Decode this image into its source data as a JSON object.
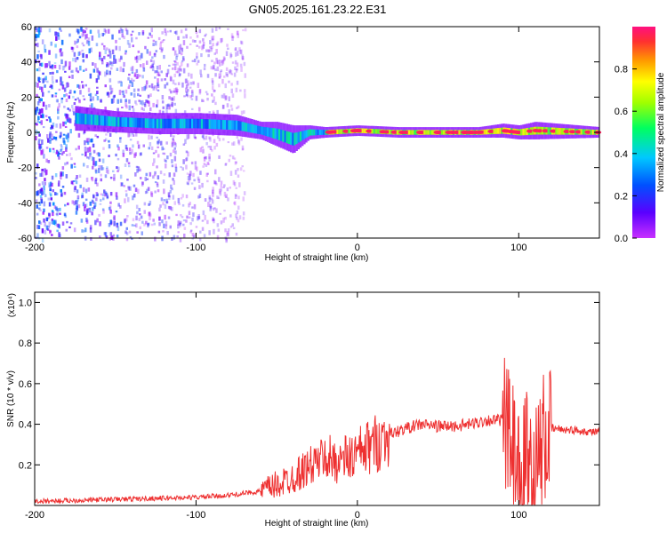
{
  "title": "GN05.2025.161.23.22.E31",
  "chart_data": [
    {
      "type": "heatmap",
      "xlabel": "Height of straight line (km)",
      "ylabel": "Frequency (Hz)",
      "xlim": [
        -200,
        150
      ],
      "ylim": [
        -60,
        60
      ],
      "xticks": [
        -200,
        -100,
        0,
        100
      ],
      "yticks": [
        60,
        40,
        20,
        0,
        -20,
        -40,
        -60
      ],
      "colorbar": {
        "label": "Normalized spectral amplitude",
        "range": [
          0,
          1
        ],
        "ticks": [
          "0.8",
          "0.6",
          "0.4",
          "0.2",
          "0.0"
        ],
        "colors": [
          "#c830ff",
          "#5a00ff",
          "#0050ff",
          "#00c8ff",
          "#00ff60",
          "#a0ff00",
          "#ffff00",
          "#ff9900",
          "#ff3030",
          "#ff1080"
        ]
      },
      "band": {
        "x": [
          -175,
          -150,
          -125,
          -100,
          -75,
          -60,
          -50,
          -40,
          -30,
          -20,
          0,
          25,
          50,
          75,
          90,
          100,
          110,
          150
        ],
        "center_hz": [
          8,
          6,
          5,
          5,
          4,
          1,
          -1,
          -4,
          0,
          0,
          1,
          0,
          0,
          0,
          1,
          0,
          1,
          0
        ],
        "halfwidth_hz": [
          7,
          6,
          6,
          6,
          6,
          5,
          7,
          8,
          4,
          3,
          3,
          3,
          3,
          3,
          4,
          4,
          5,
          3
        ]
      }
    },
    {
      "type": "line",
      "xlabel": "Height of straight line (km)",
      "ylabel": "SNR (10 * v/v)",
      "yscale_note": "(x10⁴)",
      "xlim": [
        -200,
        150
      ],
      "ylim": [
        0,
        1.05
      ],
      "xticks": [
        -200,
        -100,
        0,
        100
      ],
      "yticks": [
        "1.0",
        "0.8",
        "0.6",
        "0.4",
        "0.2"
      ],
      "series": [
        {
          "color": "#ee3030",
          "x": [
            -200,
            -150,
            -100,
            -80,
            -60,
            -50,
            -40,
            -30,
            -20,
            -10,
            0,
            10,
            20,
            30,
            40,
            50,
            60,
            70,
            80,
            90,
            95,
            100,
            105,
            110,
            115,
            120,
            150
          ],
          "y": [
            0.02,
            0.03,
            0.04,
            0.05,
            0.07,
            0.1,
            0.14,
            0.19,
            0.24,
            0.22,
            0.25,
            0.3,
            0.35,
            0.38,
            0.4,
            0.39,
            0.39,
            0.4,
            0.42,
            0.42,
            0.3,
            0.12,
            0.25,
            0.15,
            0.3,
            0.38,
            0.36
          ]
        }
      ]
    }
  ]
}
